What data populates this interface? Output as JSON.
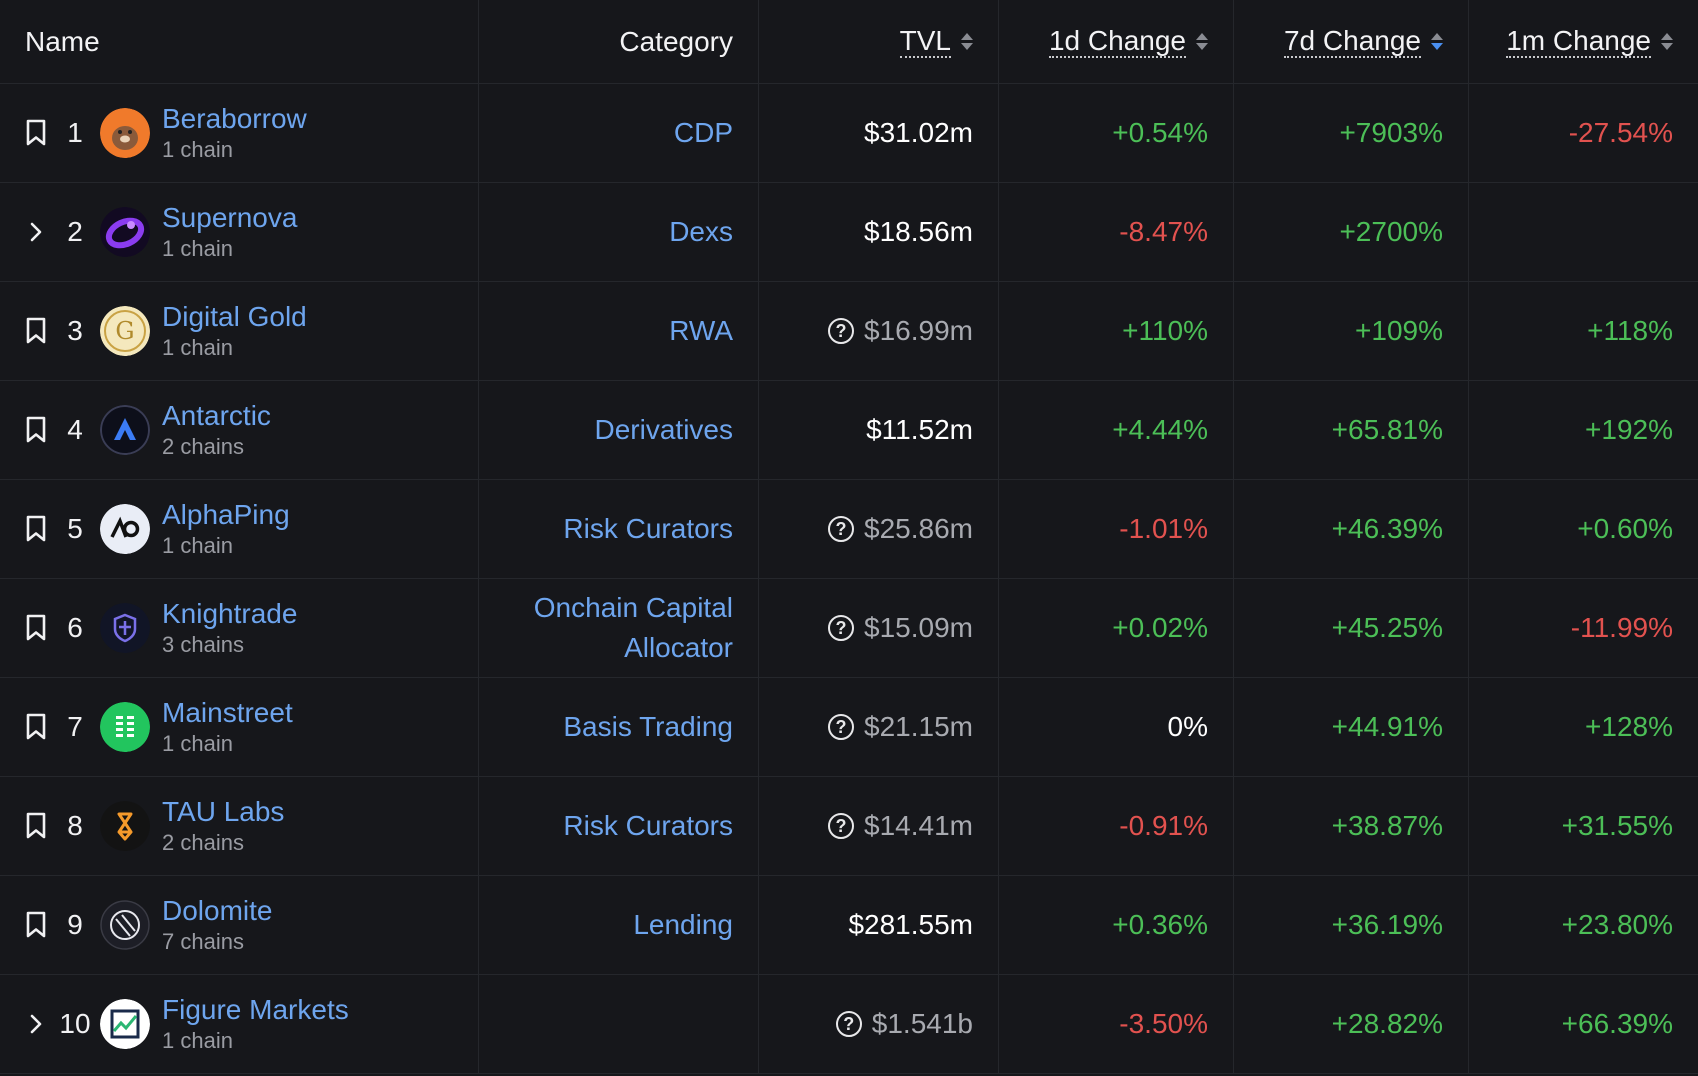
{
  "header": {
    "name": "Name",
    "category": "Category",
    "tvl": "TVL",
    "d1": "1d Change",
    "d7": "7d Change",
    "m1": "1m Change"
  },
  "colors": {
    "positive": "#4cbf57",
    "negative": "#e2524f",
    "link": "#6ea5ee",
    "sort_active": "#4a8ff0"
  },
  "rows": [
    {
      "icon": "bookmark-icon",
      "rank": "1",
      "name": "Beraborrow",
      "chains": "1 chain",
      "category": "CDP",
      "tvl": "$31.02m",
      "tvl_flag": false,
      "d1": "+0.54%",
      "d7": "+7903%",
      "m1": "-27.54%"
    },
    {
      "icon": "chevron-right-icon",
      "rank": "2",
      "name": "Supernova",
      "chains": "1 chain",
      "category": "Dexs",
      "tvl": "$18.56m",
      "tvl_flag": false,
      "d1": "-8.47%",
      "d7": "+2700%",
      "m1": ""
    },
    {
      "icon": "bookmark-icon",
      "rank": "3",
      "name": "Digital Gold",
      "chains": "1 chain",
      "category": "RWA",
      "tvl": "$16.99m",
      "tvl_flag": true,
      "d1": "+110%",
      "d7": "+109%",
      "m1": "+118%"
    },
    {
      "icon": "bookmark-icon",
      "rank": "4",
      "name": "Antarctic",
      "chains": "2 chains",
      "category": "Derivatives",
      "tvl": "$11.52m",
      "tvl_flag": false,
      "d1": "+4.44%",
      "d7": "+65.81%",
      "m1": "+192%"
    },
    {
      "icon": "bookmark-icon",
      "rank": "5",
      "name": "AlphaPing",
      "chains": "1 chain",
      "category": "Risk Curators",
      "tvl": "$25.86m",
      "tvl_flag": true,
      "d1": "-1.01%",
      "d7": "+46.39%",
      "m1": "+0.60%"
    },
    {
      "icon": "bookmark-icon",
      "rank": "6",
      "name": "Knightrade",
      "chains": "3 chains",
      "category": "Onchain Capital Allocator",
      "tvl": "$15.09m",
      "tvl_flag": true,
      "d1": "+0.02%",
      "d7": "+45.25%",
      "m1": "-11.99%"
    },
    {
      "icon": "bookmark-icon",
      "rank": "7",
      "name": "Mainstreet",
      "chains": "1 chain",
      "category": "Basis Trading",
      "tvl": "$21.15m",
      "tvl_flag": true,
      "d1": "0%",
      "d7": "+44.91%",
      "m1": "+128%"
    },
    {
      "icon": "bookmark-icon",
      "rank": "8",
      "name": "TAU Labs",
      "chains": "2 chains",
      "category": "Risk Curators",
      "tvl": "$14.41m",
      "tvl_flag": true,
      "d1": "-0.91%",
      "d7": "+38.87%",
      "m1": "+31.55%"
    },
    {
      "icon": "bookmark-icon",
      "rank": "9",
      "name": "Dolomite",
      "chains": "7 chains",
      "category": "Lending",
      "tvl": "$281.55m",
      "tvl_flag": false,
      "d1": "+0.36%",
      "d7": "+36.19%",
      "m1": "+23.80%"
    },
    {
      "icon": "chevron-right-icon",
      "rank": "10",
      "name": "Figure Markets",
      "chains": "1 chain",
      "category": "",
      "tvl": "$1.541b",
      "tvl_flag": true,
      "d1": "-3.50%",
      "d7": "+28.82%",
      "m1": "+66.39%"
    }
  ]
}
